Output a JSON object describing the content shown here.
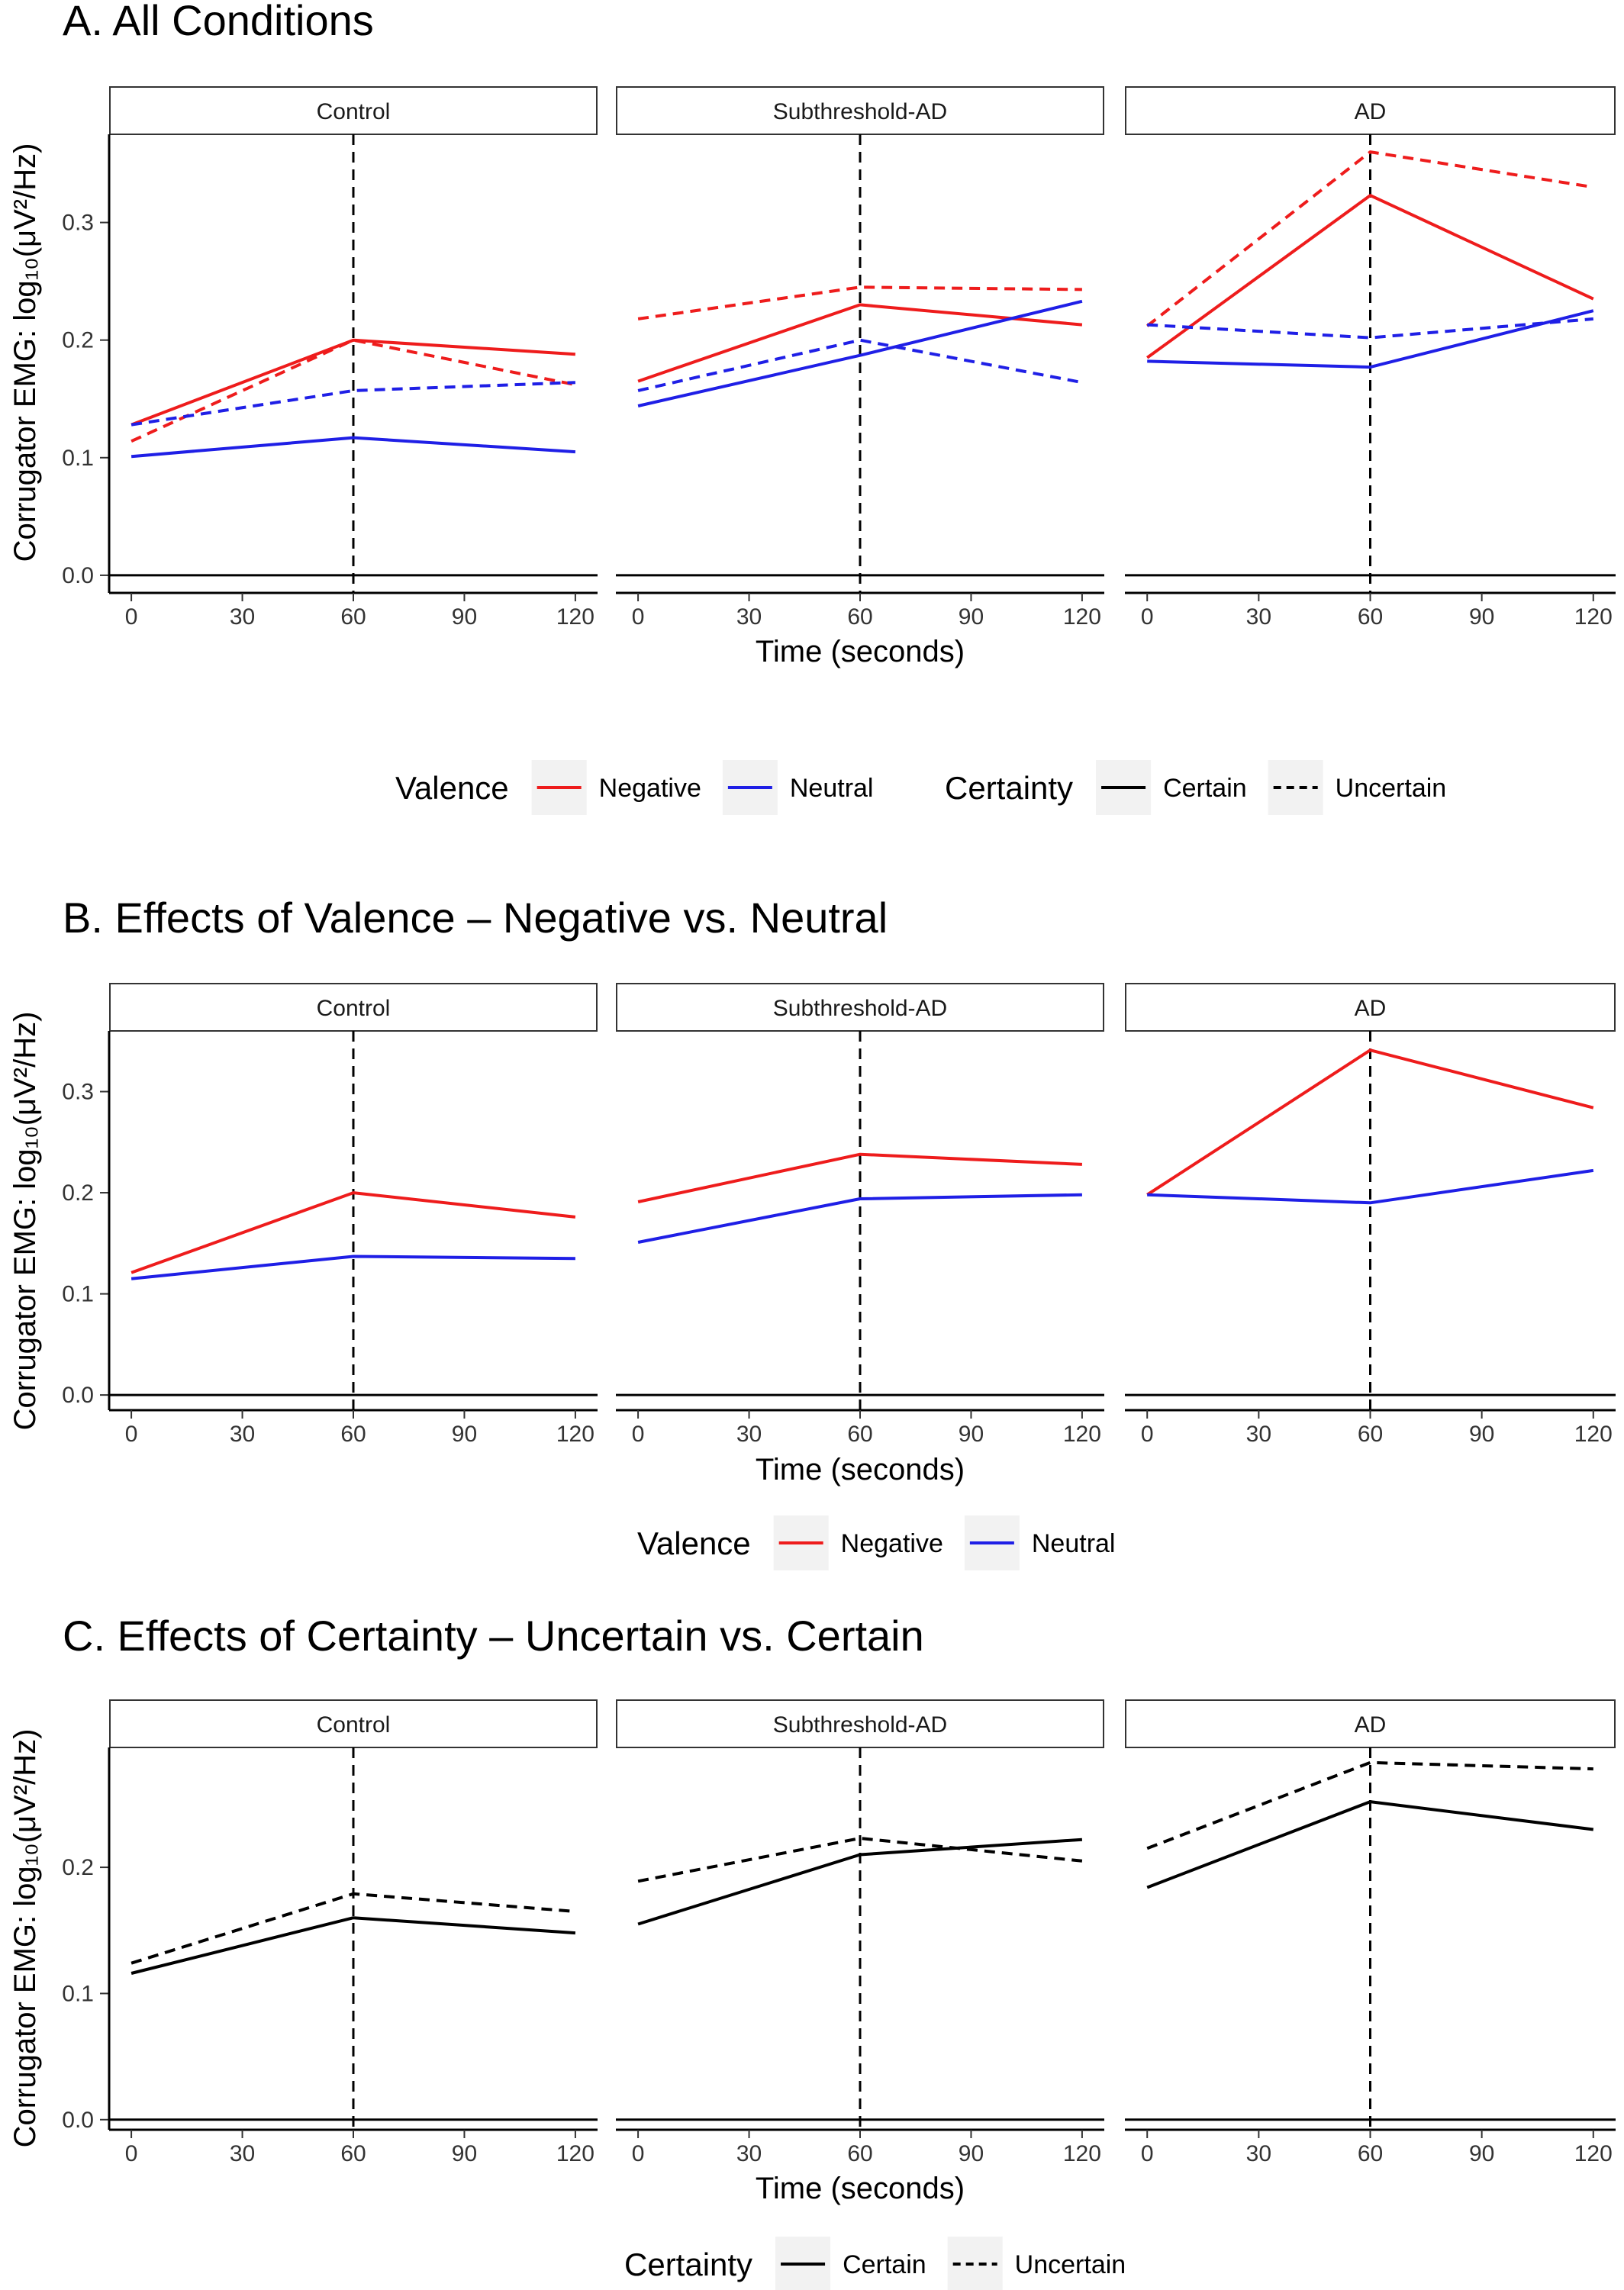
{
  "chart_data": [
    {
      "type": "line",
      "title": "A.  All Conditions",
      "ylabel": "Corrugator EMG: log₁₀(μV²/Hz)",
      "xlabel": "Time (seconds)",
      "x_ticks": [
        "0",
        "30",
        "60",
        "90",
        "120"
      ],
      "y_ticks": [
        "0.0",
        "0.1",
        "0.2",
        "0.3"
      ],
      "ylim": [
        -0.015,
        0.375
      ],
      "xlim": [
        -6,
        126
      ],
      "facets": [
        {
          "name": "Control",
          "series": [
            {
              "valence": "Negative",
              "certainty": "Certain",
              "x": [
                0,
                60,
                120
              ],
              "y": [
                0.128,
                0.2,
                0.188
              ]
            },
            {
              "valence": "Negative",
              "certainty": "Uncertain",
              "x": [
                0,
                60,
                120
              ],
              "y": [
                0.114,
                0.2,
                0.162
              ]
            },
            {
              "valence": "Neutral",
              "certainty": "Certain",
              "x": [
                0,
                60,
                120
              ],
              "y": [
                0.101,
                0.117,
                0.105
              ]
            },
            {
              "valence": "Neutral",
              "certainty": "Uncertain",
              "x": [
                0,
                60,
                120
              ],
              "y": [
                0.128,
                0.157,
                0.164
              ]
            }
          ]
        },
        {
          "name": "Subthreshold-AD",
          "series": [
            {
              "valence": "Negative",
              "certainty": "Certain",
              "x": [
                0,
                60,
                120
              ],
              "y": [
                0.165,
                0.23,
                0.213
              ]
            },
            {
              "valence": "Negative",
              "certainty": "Uncertain",
              "x": [
                0,
                60,
                120
              ],
              "y": [
                0.218,
                0.245,
                0.243
              ]
            },
            {
              "valence": "Neutral",
              "certainty": "Certain",
              "x": [
                0,
                60,
                120
              ],
              "y": [
                0.144,
                0.187,
                0.233
              ]
            },
            {
              "valence": "Neutral",
              "certainty": "Uncertain",
              "x": [
                0,
                60,
                120
              ],
              "y": [
                0.157,
                0.2,
                0.164
              ]
            }
          ]
        },
        {
          "name": "AD",
          "series": [
            {
              "valence": "Negative",
              "certainty": "Certain",
              "x": [
                0,
                60,
                120
              ],
              "y": [
                0.185,
                0.323,
                0.235
              ]
            },
            {
              "valence": "Negative",
              "certainty": "Uncertain",
              "x": [
                0,
                60,
                120
              ],
              "y": [
                0.212,
                0.36,
                0.33
              ]
            },
            {
              "valence": "Neutral",
              "certainty": "Certain",
              "x": [
                0,
                60,
                120
              ],
              "y": [
                0.182,
                0.177,
                0.225
              ]
            },
            {
              "valence": "Neutral",
              "certainty": "Uncertain",
              "x": [
                0,
                60,
                120
              ],
              "y": [
                0.213,
                0.202,
                0.218
              ]
            }
          ]
        }
      ],
      "legend": {
        "position": "bottom",
        "groups": [
          {
            "title": "Valence",
            "items": [
              {
                "label": "Negative",
                "color": "#ee1c1c",
                "dash": "solid"
              },
              {
                "label": "Neutral",
                "color": "#1f1fe6",
                "dash": "solid"
              }
            ]
          },
          {
            "title": "Certainty",
            "items": [
              {
                "label": "Certain",
                "color": "#000000",
                "dash": "solid"
              },
              {
                "label": "Uncertain",
                "color": "#000000",
                "dash": "dashed"
              }
            ]
          }
        ]
      }
    },
    {
      "type": "line",
      "title": "B.  Effects of Valence – Negative vs. Neutral",
      "ylabel": "Corrugator EMG: log₁₀(μV²/Hz)",
      "xlabel": "Time (seconds)",
      "x_ticks": [
        "0",
        "30",
        "60",
        "90",
        "120"
      ],
      "y_ticks": [
        "0.0",
        "0.1",
        "0.2",
        "0.3"
      ],
      "ylim": [
        -0.015,
        0.36
      ],
      "xlim": [
        -6,
        126
      ],
      "facets": [
        {
          "name": "Control",
          "series": [
            {
              "valence": "Negative",
              "x": [
                0,
                60,
                120
              ],
              "y": [
                0.121,
                0.2,
                0.176
              ]
            },
            {
              "valence": "Neutral",
              "x": [
                0,
                60,
                120
              ],
              "y": [
                0.115,
                0.137,
                0.135
              ]
            }
          ]
        },
        {
          "name": "Subthreshold-AD",
          "series": [
            {
              "valence": "Negative",
              "x": [
                0,
                60,
                120
              ],
              "y": [
                0.191,
                0.238,
                0.228
              ]
            },
            {
              "valence": "Neutral",
              "x": [
                0,
                60,
                120
              ],
              "y": [
                0.151,
                0.194,
                0.198
              ]
            }
          ]
        },
        {
          "name": "AD",
          "series": [
            {
              "valence": "Negative",
              "x": [
                0,
                60,
                120
              ],
              "y": [
                0.198,
                0.341,
                0.284
              ]
            },
            {
              "valence": "Neutral",
              "x": [
                0,
                60,
                120
              ],
              "y": [
                0.198,
                0.19,
                0.222
              ]
            }
          ]
        }
      ],
      "legend": {
        "position": "bottom",
        "groups": [
          {
            "title": "Valence",
            "items": [
              {
                "label": "Negative",
                "color": "#ee1c1c",
                "dash": "solid"
              },
              {
                "label": "Neutral",
                "color": "#1f1fe6",
                "dash": "solid"
              }
            ]
          }
        ]
      }
    },
    {
      "type": "line",
      "title": "C.  Effects of Certainty – Uncertain vs. Certain",
      "ylabel": "Corrugator EMG: log₁₀(μV²/Hz)",
      "xlabel": "Time (seconds)",
      "x_ticks": [
        "0",
        "30",
        "60",
        "90",
        "120"
      ],
      "y_ticks": [
        "0.0",
        "0.1",
        "0.2"
      ],
      "ylim": [
        -0.008,
        0.295
      ],
      "xlim": [
        -6,
        126
      ],
      "facets": [
        {
          "name": "Control",
          "series": [
            {
              "certainty": "Certain",
              "x": [
                0,
                60,
                120
              ],
              "y": [
                0.116,
                0.16,
                0.148
              ]
            },
            {
              "certainty": "Uncertain",
              "x": [
                0,
                60,
                120
              ],
              "y": [
                0.124,
                0.179,
                0.165
              ]
            }
          ]
        },
        {
          "name": "Subthreshold-AD",
          "series": [
            {
              "certainty": "Certain",
              "x": [
                0,
                60,
                120
              ],
              "y": [
                0.155,
                0.21,
                0.222
              ]
            },
            {
              "certainty": "Uncertain",
              "x": [
                0,
                60,
                120
              ],
              "y": [
                0.189,
                0.223,
                0.205
              ]
            }
          ]
        },
        {
          "name": "AD",
          "series": [
            {
              "certainty": "Certain",
              "x": [
                0,
                60,
                120
              ],
              "y": [
                0.184,
                0.252,
                0.23
              ]
            },
            {
              "certainty": "Uncertain",
              "x": [
                0,
                60,
                120
              ],
              "y": [
                0.215,
                0.283,
                0.278
              ]
            }
          ]
        }
      ],
      "legend": {
        "position": "bottom",
        "groups": [
          {
            "title": "Certainty",
            "items": [
              {
                "label": "Certain",
                "color": "#000000",
                "dash": "solid"
              },
              {
                "label": "Uncertain",
                "color": "#000000",
                "dash": "dashed"
              }
            ]
          }
        ]
      }
    }
  ]
}
